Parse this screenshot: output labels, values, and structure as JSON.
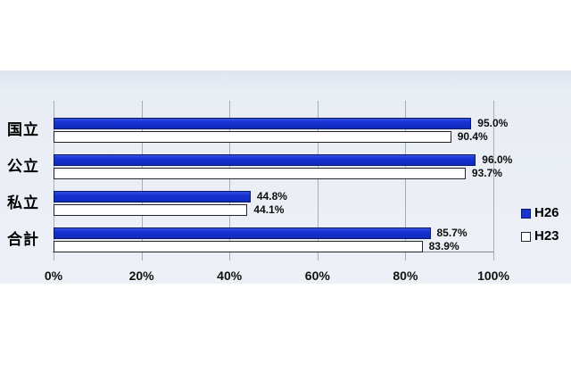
{
  "chart_data": {
    "type": "bar",
    "orientation": "horizontal",
    "title": "",
    "xlabel": "",
    "ylabel": "",
    "categories": [
      "国立",
      "公立",
      "私立",
      "合計"
    ],
    "series": [
      {
        "name": "H26",
        "values": [
          95.0,
          96.0,
          44.8,
          85.7
        ],
        "labels": [
          "95.0%",
          "96.0%",
          "44.8%",
          "85.7%"
        ],
        "fill": "#1733d2",
        "border": "#0b1b66"
      },
      {
        "name": "H23",
        "values": [
          90.4,
          93.7,
          44.1,
          83.9
        ],
        "labels": [
          "90.4%",
          "93.7%",
          "44.1%",
          "83.9%"
        ],
        "fill": "#ffffff",
        "border": "#23232e"
      }
    ],
    "x_ticks": [
      "0%",
      "20%",
      "40%",
      "60%",
      "80%",
      "100%"
    ],
    "xlim": [
      0,
      100
    ],
    "grid": true,
    "legend_position": "right",
    "legend_items": [
      "H26",
      "H23"
    ],
    "colors": {
      "panel_background": "#e9edf4",
      "gridline": "#a6aeb9",
      "axis_line": "#7c8591",
      "bar_blue": "#1733d2",
      "bar_blue_border": "#0b1b66",
      "bar_white": "#ffffff",
      "bar_border_dark": "#23232e",
      "label_text": "#0d0d0d"
    }
  }
}
